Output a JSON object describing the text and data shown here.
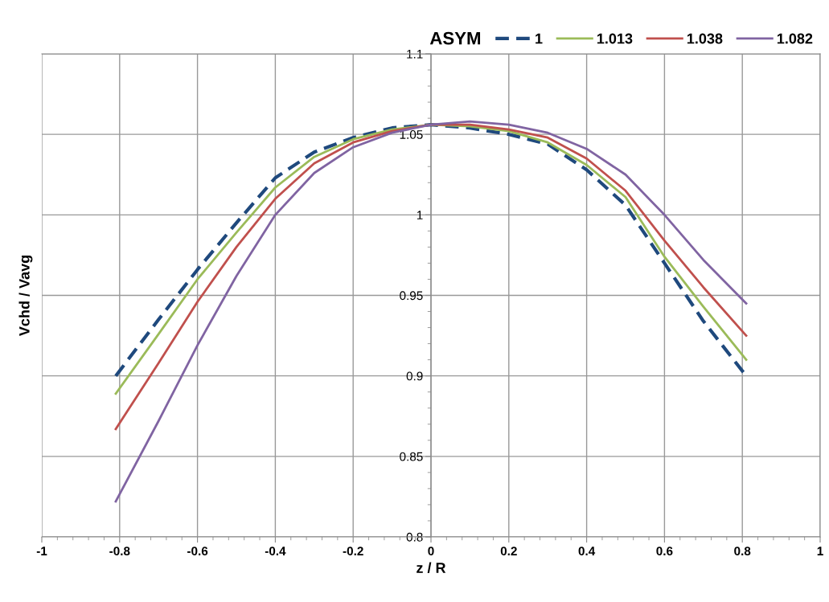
{
  "chart_data": {
    "type": "line",
    "xlabel": "z / R",
    "ylabel": "Vchd / Vavg",
    "legend_title": "ASYM",
    "xlim": [
      -1,
      1
    ],
    "xticks": [
      -1,
      -0.8,
      -0.6,
      -0.4,
      -0.2,
      0,
      0.2,
      0.4,
      0.6,
      0.8,
      1
    ],
    "ylim": [
      0.8,
      1.1
    ],
    "yticks": [
      0.8,
      0.85,
      0.9,
      0.95,
      1,
      1.05,
      1.1
    ],
    "grid": true,
    "legend": "top right",
    "marker": "none",
    "x": [
      -0.81,
      -0.7,
      -0.6,
      -0.5,
      -0.4,
      -0.3,
      -0.2,
      -0.1,
      0,
      0.1,
      0.2,
      0.3,
      0.4,
      0.5,
      0.6,
      0.7,
      0.81
    ],
    "series": [
      {
        "name": "1",
        "color": "#1f497d",
        "line_style": "dashed",
        "values": [
          0.9,
          0.935,
          0.966,
          0.995,
          1.023,
          1.039,
          1.048,
          1.054,
          1.056,
          1.054,
          1.05,
          1.044,
          1.028,
          1.006,
          0.97,
          0.934,
          0.9
        ]
      },
      {
        "name": "1.013",
        "color": "#9bbb59",
        "line_style": "solid",
        "values": [
          0.889,
          0.926,
          0.96,
          0.989,
          1.017,
          1.036,
          1.047,
          1.053,
          1.056,
          1.055,
          1.052,
          1.045,
          1.031,
          1.011,
          0.974,
          0.943,
          0.91
        ]
      },
      {
        "name": "1.038",
        "color": "#c0504d",
        "line_style": "solid",
        "values": [
          0.867,
          0.908,
          0.946,
          0.98,
          1.01,
          1.032,
          1.045,
          1.052,
          1.056,
          1.056,
          1.053,
          1.048,
          1.035,
          1.015,
          0.984,
          0.955,
          0.925
        ]
      },
      {
        "name": "1.082",
        "color": "#8064a2",
        "line_style": "solid",
        "values": [
          0.822,
          0.872,
          0.919,
          0.962,
          1.0,
          1.026,
          1.042,
          1.051,
          1.056,
          1.058,
          1.056,
          1.051,
          1.041,
          1.025,
          1.0,
          0.972,
          0.945
        ]
      }
    ]
  }
}
